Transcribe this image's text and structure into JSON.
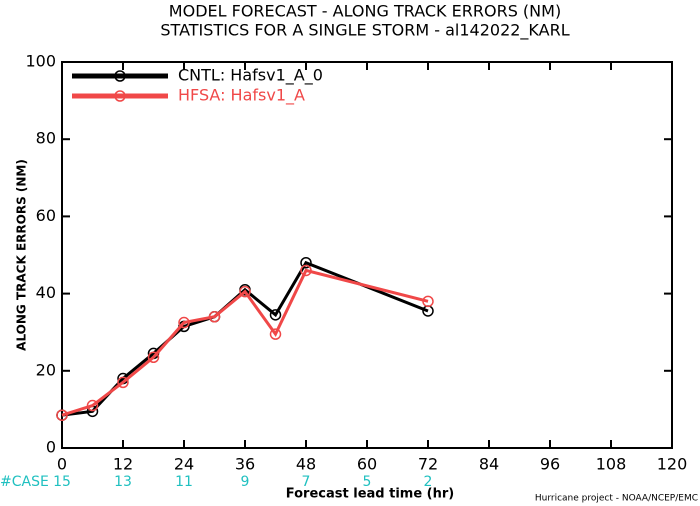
{
  "chart_data": {
    "type": "line",
    "title": "MODEL FORECAST - ALONG TRACK ERRORS (NM)",
    "subtitle": "STATISTICS FOR A SINGLE STORM - al142022_KARL",
    "x_label": "Forecast lead time (hr)",
    "y_label": "ALONG TRACK ERRORS (NM)",
    "x": [
      0,
      6,
      12,
      18,
      24,
      30,
      36,
      42,
      48,
      72
    ],
    "series": [
      {
        "name": "CNTL: Hafsv1_A_0",
        "color": "#000000",
        "values": [
          8.5,
          9.5,
          18,
          24.5,
          31.5,
          34,
          41,
          34.5,
          48,
          35.5
        ]
      },
      {
        "name": "HFSA: Hafsv1_A",
        "color": "#f04848",
        "values": [
          8.5,
          11,
          17,
          23.5,
          32.5,
          34,
          40.5,
          29.5,
          46,
          38
        ]
      }
    ],
    "xlim": [
      0,
      120
    ],
    "xticks": [
      0,
      12,
      24,
      36,
      48,
      60,
      72,
      84,
      96,
      108,
      120
    ],
    "ylim": [
      0,
      100
    ],
    "yticks": [
      0,
      20,
      40,
      60,
      80,
      100
    ],
    "grid": false,
    "legend": "upper left",
    "case_label": "#CASE",
    "case_x": [
      0,
      12,
      24,
      36,
      48,
      60,
      72
    ],
    "case_counts": [
      15,
      13,
      11,
      9,
      7,
      5,
      2
    ],
    "case_color": "#20c0c0",
    "footer": "Hurricane project - NOAA/NCEP/EMC"
  }
}
